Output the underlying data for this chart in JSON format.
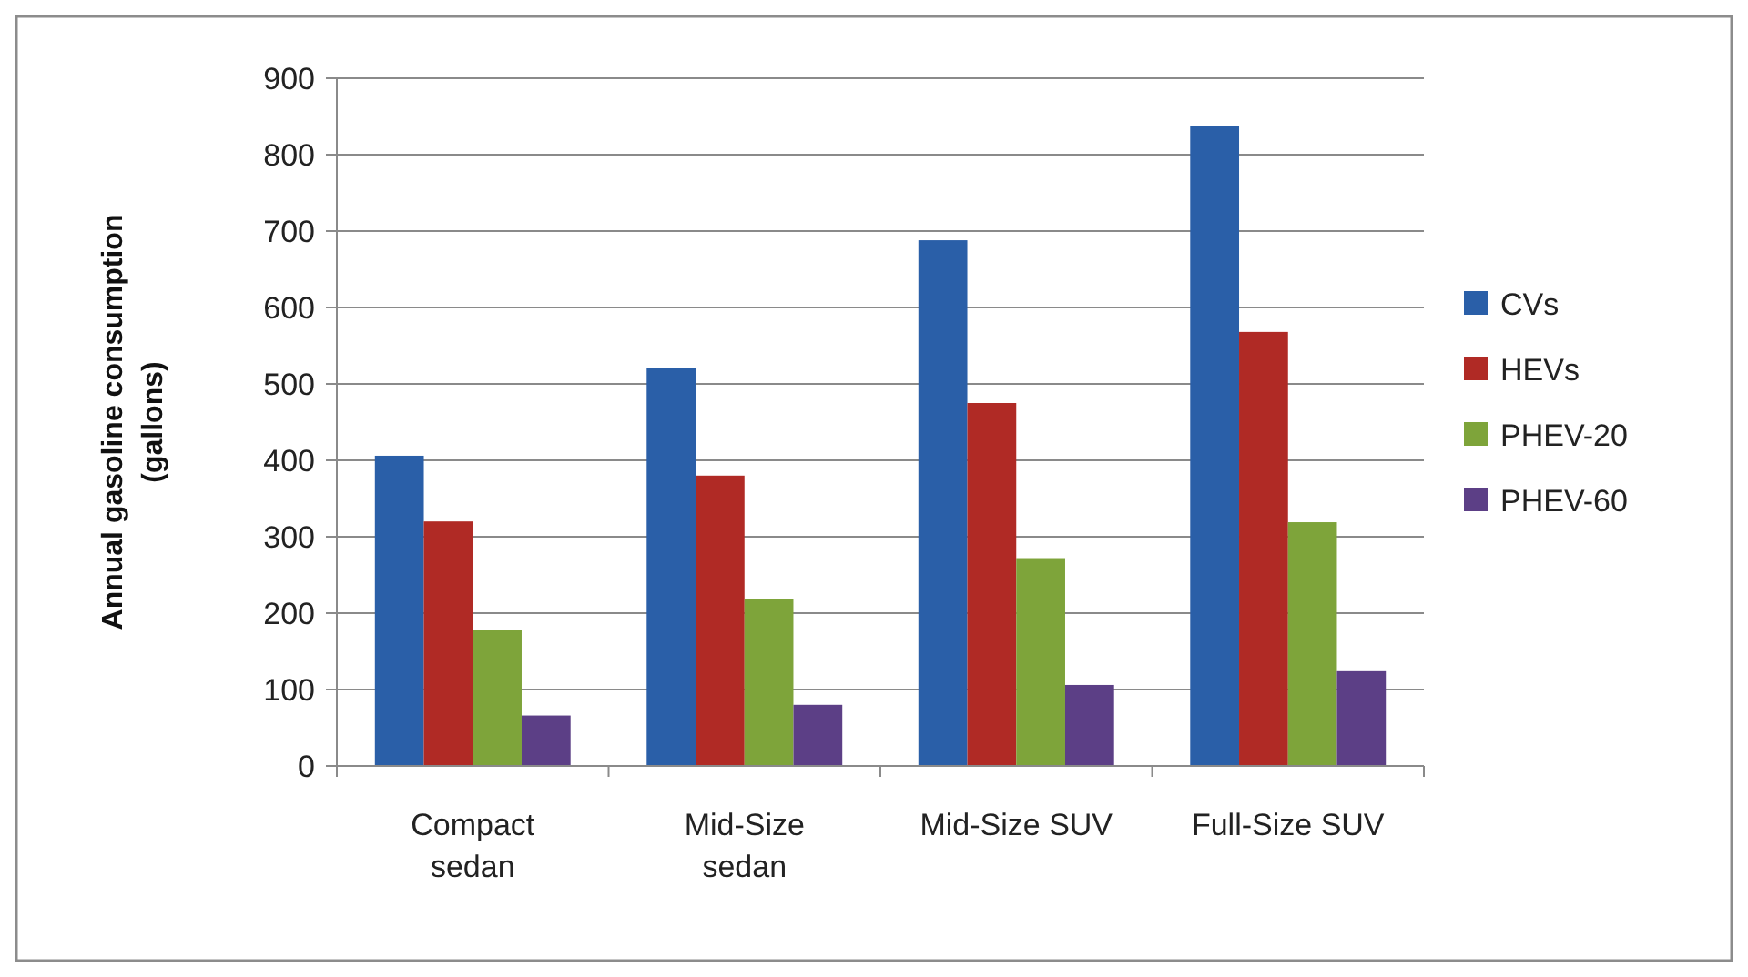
{
  "chart_data": {
    "type": "bar",
    "ylabel": "Annual gasoline consumption\n(gallons)",
    "categories": [
      "Compact\nsedan",
      "Mid-Size\nsedan",
      "Mid-Size SUV",
      "Full-Size SUV"
    ],
    "series": [
      {
        "name": "CVs",
        "color": "#2a5fa8",
        "values": [
          406,
          521,
          688,
          837
        ]
      },
      {
        "name": "HEVs",
        "color": "#b02a25",
        "values": [
          320,
          380,
          475,
          568
        ]
      },
      {
        "name": "PHEV-20",
        "color": "#7ea43a",
        "values": [
          178,
          218,
          272,
          319
        ]
      },
      {
        "name": "PHEV-60",
        "color": "#5c3f86",
        "values": [
          66,
          80,
          106,
          124
        ]
      }
    ],
    "ylim": [
      0,
      900
    ],
    "yticks": [
      0,
      100,
      200,
      300,
      400,
      500,
      600,
      700,
      800,
      900
    ],
    "grid": "y",
    "legend": "right"
  }
}
